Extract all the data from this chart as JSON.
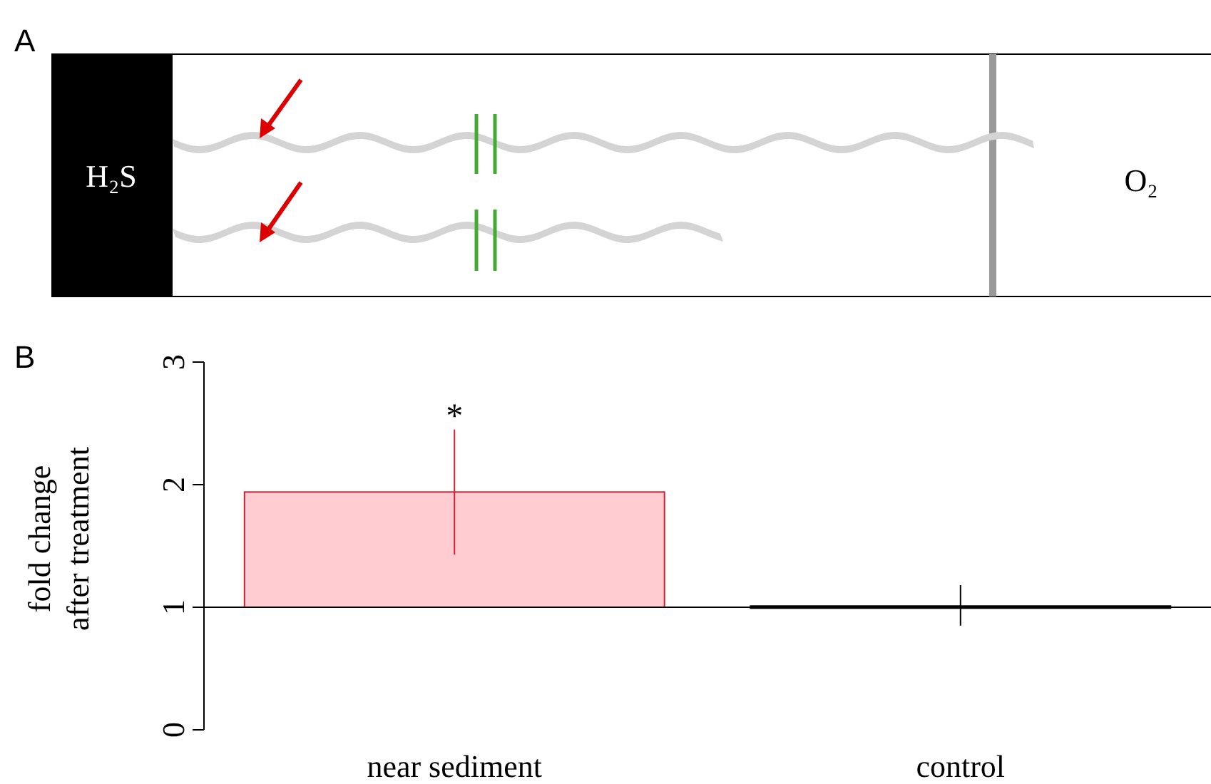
{
  "chart_data": [
    {
      "type": "other",
      "title": "A",
      "annotations": [
        "H₂S",
        "O₂"
      ]
    },
    {
      "type": "bar",
      "title": "B",
      "ylabel": "fold change\nafter treatment",
      "categories": [
        "near sediment",
        "control"
      ],
      "series": [
        {
          "colors": [
            "#ffccd1",
            "#000000"
          ],
          "values": [
            0.94,
            0.01
          ],
          "base": [
            1,
            1
          ],
          "errors": [
            [
              1.43,
              2.45
            ],
            [
              0.85,
              1.18
            ]
          ]
        }
      ],
      "ylim": [
        0,
        3
      ],
      "yticks": [
        0,
        1,
        2,
        3
      ],
      "ref_lines": [
        {
          "axis": "y",
          "value": 1,
          "color": "#000000"
        }
      ],
      "annotations": [
        "*"
      ]
    }
  ]
}
